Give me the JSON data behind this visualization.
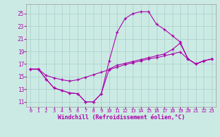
{
  "background_color": "#cceae4",
  "grid_color": "#aad4cc",
  "line_color": "#aa00aa",
  "xlabel": "Windchill (Refroidissement éolien,°C)",
  "xlabel_fontsize": 6.0,
  "yticks": [
    11,
    13,
    15,
    17,
    19,
    21,
    23,
    25
  ],
  "xticks": [
    0,
    1,
    2,
    3,
    4,
    5,
    6,
    7,
    8,
    9,
    10,
    11,
    12,
    13,
    14,
    15,
    16,
    17,
    18,
    19,
    20,
    21,
    22,
    23
  ],
  "xlim": [
    -0.5,
    23.5
  ],
  "ylim": [
    10.2,
    26.5
  ],
  "curve1_x": [
    0,
    1,
    2,
    3,
    4,
    5,
    6,
    7,
    8,
    9,
    10,
    11,
    12,
    13,
    14,
    15,
    16,
    17,
    18,
    19,
    20,
    21,
    22,
    23
  ],
  "curve1_y": [
    16.2,
    16.2,
    14.6,
    13.2,
    12.8,
    12.4,
    12.3,
    11.0,
    11.0,
    12.3,
    17.5,
    22.0,
    24.2,
    25.0,
    25.3,
    25.3,
    23.3,
    22.5,
    21.5,
    20.5,
    17.8,
    17.0,
    17.5,
    17.8
  ],
  "curve2_x": [
    0,
    1,
    2,
    3,
    4,
    5,
    6,
    7,
    8,
    9,
    10,
    11,
    12,
    13,
    14,
    15,
    16,
    17,
    18,
    19,
    20,
    21,
    22,
    23
  ],
  "curve2_y": [
    16.2,
    16.2,
    14.6,
    13.2,
    12.8,
    12.4,
    12.3,
    11.0,
    11.0,
    12.3,
    16.2,
    16.8,
    17.1,
    17.4,
    17.7,
    18.0,
    18.3,
    18.6,
    19.3,
    20.3,
    17.8,
    17.0,
    17.5,
    17.8
  ],
  "curve3_x": [
    0,
    1,
    2,
    3,
    4,
    5,
    6,
    7,
    8,
    9,
    10,
    11,
    12,
    13,
    14,
    15,
    16,
    17,
    18,
    19,
    20,
    21,
    22,
    23
  ],
  "curve3_y": [
    16.2,
    16.2,
    15.2,
    14.8,
    14.5,
    14.3,
    14.5,
    14.9,
    15.3,
    15.7,
    16.1,
    16.5,
    16.9,
    17.2,
    17.5,
    17.8,
    18.0,
    18.3,
    18.6,
    18.9,
    17.8,
    17.0,
    17.5,
    17.8
  ]
}
